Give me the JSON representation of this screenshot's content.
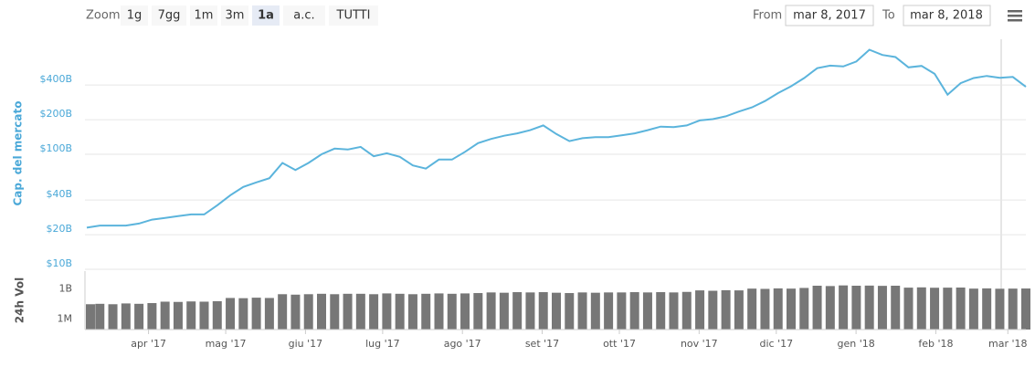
{
  "toolbar": {
    "zoom_label": "Zoom",
    "buttons": [
      "1g",
      "7gg",
      "1m",
      "3m",
      "1a",
      "a.c.",
      "TUTTI"
    ],
    "selected": 4,
    "from_label": "From",
    "to_label": "To"
  },
  "chart_data": [
    {
      "type": "line",
      "y_title": "Cap. del mercato",
      "color": "#5bb4dc",
      "log_scale": true,
      "grid": true,
      "xlim": [
        {
          "value": "2017-03-08",
          "label": "mar 8, 2017"
        },
        {
          "value": "2018-03-08",
          "label": "mar 8, 2018"
        }
      ],
      "ylim": [
        10,
        1000
      ],
      "yticks": [
        {
          "value": 10,
          "label": "$10B"
        },
        {
          "value": 20,
          "label": "$20B"
        },
        {
          "value": 40,
          "label": "$40B"
        },
        {
          "value": 100,
          "label": "$100B"
        },
        {
          "value": 200,
          "label": "$200B"
        },
        {
          "value": 400,
          "label": "$400B"
        }
      ],
      "values": [
        23,
        24,
        24,
        24,
        25,
        27,
        28,
        29,
        30,
        30,
        36,
        44,
        52,
        57,
        62,
        84,
        73,
        84,
        100,
        112,
        110,
        116,
        96,
        102,
        95,
        80,
        75,
        90,
        90,
        105,
        125,
        136,
        145,
        152,
        162,
        178,
        150,
        130,
        138,
        141,
        141,
        146,
        152,
        162,
        174,
        172,
        178,
        197,
        202,
        214,
        235,
        256,
        290,
        340,
        390,
        460,
        560,
        590,
        580,
        640,
        810,
        730,
        700,
        570,
        586,
        500,
        330,
        415,
        460,
        480,
        462,
        470,
        386
      ]
    },
    {
      "type": "bar",
      "y_title": "24h Vol",
      "color": "#777777",
      "log_scale": true,
      "ylim": [
        300000.0,
        200000000000.0
      ],
      "yticks": [
        {
          "value": 1000000.0,
          "label": "1M"
        },
        {
          "value": 1000000000.0,
          "label": "1B"
        }
      ],
      "xticks": [
        {
          "value": "2017-04",
          "label": "apr '17"
        },
        {
          "value": "2017-05",
          "label": "mag '17"
        },
        {
          "value": "2017-06",
          "label": "giu '17"
        },
        {
          "value": "2017-07",
          "label": "lug '17"
        },
        {
          "value": "2017-08",
          "label": "ago '17"
        },
        {
          "value": "2017-09",
          "label": "set '17"
        },
        {
          "value": "2017-10",
          "label": "ott '17"
        },
        {
          "value": "2017-11",
          "label": "nov '17"
        },
        {
          "value": "2017-12",
          "label": "dic '17"
        },
        {
          "value": "2018-01",
          "label": "gen '18"
        },
        {
          "value": "2018-02",
          "label": "feb '18"
        },
        {
          "value": "2018-03",
          "label": "mar '18"
        }
      ],
      "values": [
        100000000.0,
        110000000.0,
        100000000.0,
        120000000.0,
        110000000.0,
        130000000.0,
        180000000.0,
        170000000.0,
        190000000.0,
        180000000.0,
        200000000.0,
        420000000.0,
        400000000.0,
        450000000.0,
        420000000.0,
        1000000000.0,
        900000000.0,
        1000000000.0,
        1100000000.0,
        1000000000.0,
        1100000000.0,
        1100000000.0,
        1000000000.0,
        1200000000.0,
        1100000000.0,
        1000000000.0,
        1100000000.0,
        1200000000.0,
        1100000000.0,
        1200000000.0,
        1300000000.0,
        1500000000.0,
        1400000000.0,
        1600000000.0,
        1500000000.0,
        1600000000.0,
        1400000000.0,
        1300000000.0,
        1500000000.0,
        1400000000.0,
        1500000000.0,
        1500000000.0,
        1600000000.0,
        1500000000.0,
        1600000000.0,
        1500000000.0,
        1700000000.0,
        2400000000.0,
        2200000000.0,
        2500000000.0,
        2400000000.0,
        3600000000.0,
        3400000000.0,
        3800000000.0,
        3600000000.0,
        4200000000.0,
        7000000000.0,
        6500000000.0,
        7500000000.0,
        7000000000.0,
        7200000000.0,
        6800000000.0,
        7000000000.0,
        4500000000.0,
        4800000000.0,
        4400000000.0,
        4500000000.0,
        4600000000.0,
        3600000000.0,
        3800000000.0,
        3500000000.0,
        3600000000.0,
        3700000000.0
      ]
    }
  ]
}
